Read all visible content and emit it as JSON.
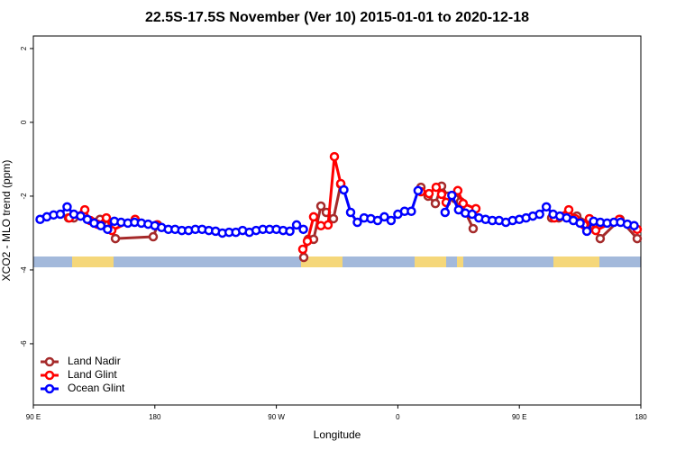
{
  "chart_data": {
    "type": "line",
    "title": "22.5S-17.5S November (Ver 10)   2015-01-01 to 2020-12-18",
    "x_label": "Longitude",
    "y_label": "XCO2 - MLO trend (ppm)",
    "xlim": [
      90,
      540
    ],
    "xticks": [
      {
        "value": 90,
        "label": "90 E"
      },
      180,
      {
        "value": 270,
        "label": "90 W"
      },
      {
        "value": 360,
        "label": "0"
      },
      {
        "value": 450,
        "label": "90 E"
      },
      {
        "value": 540,
        "label": "180"
      }
    ],
    "ylim": [
      -7.66,
      2.34
    ],
    "yticks": [
      2,
      0,
      -2,
      -4,
      -6
    ],
    "legend": "bottom-left",
    "series": [
      {
        "name": "Land Nadir",
        "color": "#a52a2a",
        "x": [
          116.0,
          120.0,
          139.4,
          145.4,
          150.8,
          178.8,
          182.1,
          null,
          290.3,
          293.6,
          297.6,
          303.0,
          307.0,
          312.3,
          317.7,
          null,
          377.1,
          382.4,
          387.8,
          392.4,
          397.1,
          402.4,
          406.4,
          415.8,
          null,
          473.9,
          479.2,
          492.6,
          504.6,
          509.9,
          524.6,
          537.3
        ],
        "values": [
          -2.59,
          -2.59,
          -2.63,
          -2.78,
          -3.15,
          -3.1,
          -2.78,
          null,
          -3.66,
          -3.17,
          -3.17,
          -2.27,
          -2.44,
          -2.61,
          -1.68,
          null,
          -1.76,
          -2.0,
          -2.2,
          -1.73,
          -2.0,
          -2.07,
          -2.15,
          -2.88,
          null,
          -2.59,
          -2.59,
          -2.54,
          -2.78,
          -3.15,
          -2.63,
          -3.15
        ]
      },
      {
        "name": "Land Glint",
        "color": "#ff0000",
        "x": [
          116.7,
          128.1,
          132.1,
          137.4,
          144.1,
          148.1,
          165.4,
          181.5,
          null,
          289.6,
          293.0,
          297.6,
          303.0,
          308.3,
          313.0,
          317.7,
          null,
          377.1,
          383.1,
          388.4,
          392.4,
          395.8,
          404.4,
          408.4,
          417.8,
          null,
          475.9,
          486.6,
          491.3,
          497.9,
          501.9,
          506.6,
          524.0,
          537.3
        ],
        "values": [
          -2.59,
          -2.37,
          -2.66,
          -2.76,
          -2.59,
          -2.93,
          -2.63,
          -2.78,
          null,
          -3.44,
          -3.22,
          -2.56,
          -2.8,
          -2.78,
          -0.93,
          -1.66,
          null,
          -1.88,
          -1.93,
          -1.76,
          -1.95,
          -2.17,
          -1.85,
          -2.2,
          -2.34,
          null,
          -2.59,
          -2.37,
          -2.61,
          -2.78,
          -2.61,
          -2.93,
          -2.63,
          -2.9
        ]
      },
      {
        "name": "Ocean Glint",
        "color": "#0000ff",
        "x": [
          95,
          100,
          105,
          110,
          115,
          120,
          125,
          130,
          135,
          140,
          145,
          150,
          155,
          160,
          165,
          170,
          175,
          180,
          185,
          190,
          195,
          200,
          205,
          210,
          215,
          220,
          225,
          230,
          235,
          240,
          245,
          250,
          255,
          260,
          265,
          270,
          275,
          280,
          285,
          290,
          295,
          300,
          305,
          310,
          315,
          320,
          325,
          330,
          335,
          340,
          345,
          350,
          355,
          360,
          365,
          370,
          375,
          380,
          385,
          390,
          395,
          400,
          405,
          410,
          415,
          420,
          425,
          430,
          435,
          440,
          445,
          450,
          455,
          460,
          465,
          470,
          475,
          480,
          485,
          490,
          495,
          500,
          505,
          510,
          515,
          520,
          525,
          530,
          535
        ],
        "values": [
          -2.63,
          -2.56,
          -2.51,
          -2.49,
          -2.29,
          -2.49,
          -2.54,
          -2.63,
          -2.73,
          -2.8,
          -2.9,
          -2.68,
          -2.71,
          -2.73,
          -2.71,
          -2.73,
          -2.76,
          -2.8,
          -2.85,
          -2.9,
          -2.9,
          -2.93,
          -2.93,
          -2.9,
          -2.9,
          -2.93,
          -2.95,
          -3.0,
          -2.98,
          -2.98,
          -2.93,
          -2.98,
          -2.93,
          -2.9,
          -2.9,
          -2.9,
          -2.93,
          -2.95,
          -2.78,
          -2.9,
          null,
          null,
          null,
          null,
          null,
          -1.83,
          -2.44,
          -2.71,
          -2.59,
          -2.61,
          -2.66,
          -2.56,
          -2.66,
          -2.49,
          -2.41,
          -2.41,
          -1.85,
          null,
          null,
          null,
          -2.44,
          -1.98,
          -2.37,
          -2.46,
          -2.49,
          -2.59,
          -2.63,
          -2.66,
          -2.66,
          -2.71,
          -2.66,
          -2.63,
          -2.59,
          -2.54,
          -2.49,
          -2.29,
          -2.49,
          -2.54,
          -2.59,
          -2.66,
          -2.73,
          -2.95,
          -2.68,
          -2.71,
          -2.73,
          -2.71,
          -2.71,
          -2.76,
          -2.8
        ]
      }
    ]
  }
}
